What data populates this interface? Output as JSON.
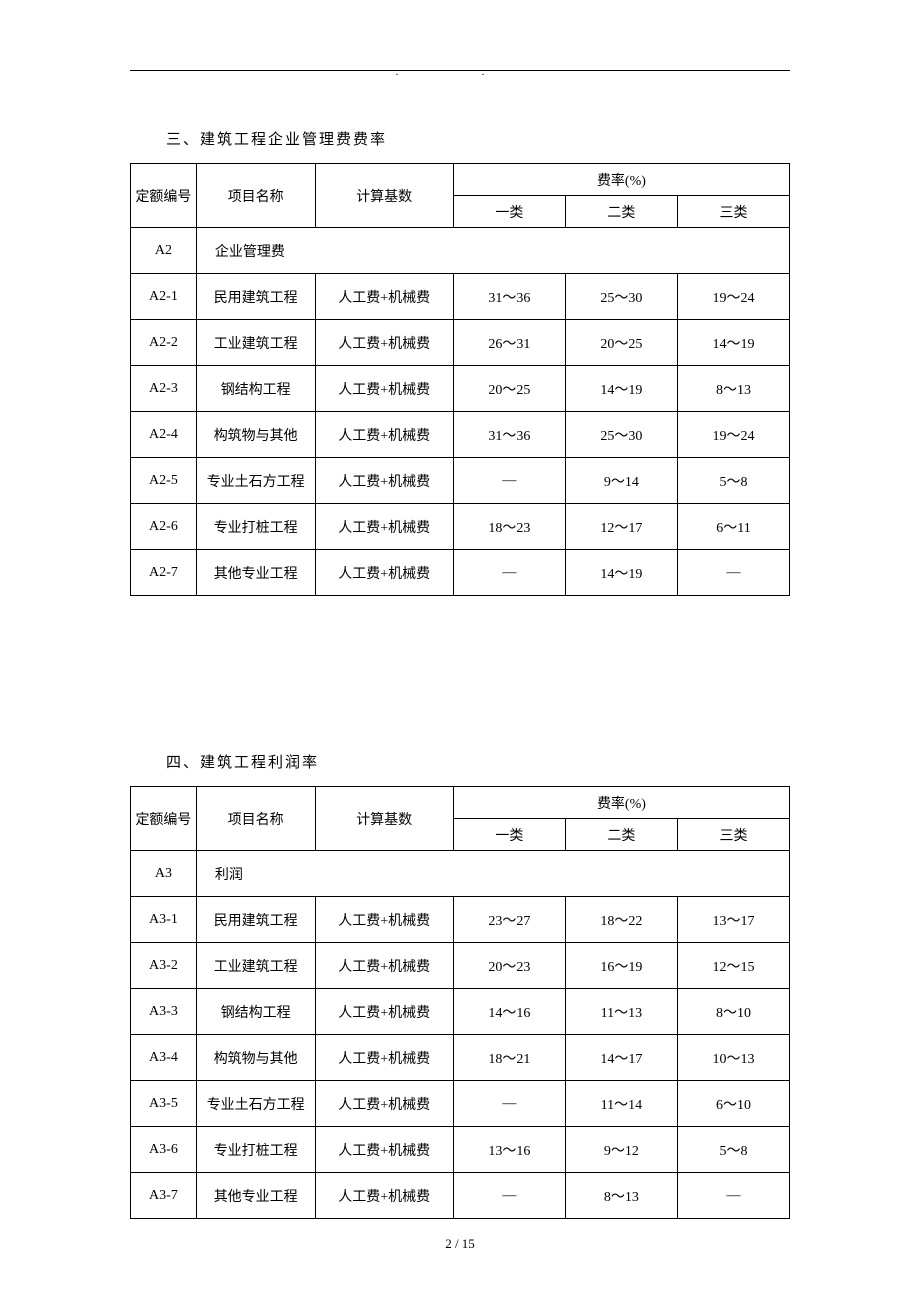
{
  "page": {
    "dots": ".   .",
    "pageNumber": "2 / 15"
  },
  "table1": {
    "title": "三、建筑工程企业管理费费率",
    "headers": {
      "code": "定额编号",
      "name": "项目名称",
      "base": "计算基数",
      "rateGroup": "费率(%)",
      "rate1": "一类",
      "rate2": "二类",
      "rate3": "三类"
    },
    "sectionCode": "A2",
    "sectionName": "企业管理费",
    "rows": [
      {
        "code": "A2-1",
        "name": "民用建筑工程",
        "base": "人工费+机械费",
        "r1": "31～36",
        "r2": "25～30",
        "r3": "19～24"
      },
      {
        "code": "A2-2",
        "name": "工业建筑工程",
        "base": "人工费+机械费",
        "r1": "26～31",
        "r2": "20～25",
        "r3": "14～19"
      },
      {
        "code": "A2-3",
        "name": "钢结构工程",
        "base": "人工费+机械费",
        "r1": "20～25",
        "r2": "14～19",
        "r3": "8～13"
      },
      {
        "code": "A2-4",
        "name": "构筑物与其他",
        "base": "人工费+机械费",
        "r1": "31～36",
        "r2": "25～30",
        "r3": "19～24"
      },
      {
        "code": "A2-5",
        "name": "专业土石方工程",
        "base": "人工费+机械费",
        "r1": "—",
        "r2": "9～14",
        "r3": "5～8"
      },
      {
        "code": "A2-6",
        "name": "专业打桩工程",
        "base": "人工费+机械费",
        "r1": "18～23",
        "r2": "12～17",
        "r3": "6～11"
      },
      {
        "code": "A2-7",
        "name": "其他专业工程",
        "base": "人工费+机械费",
        "r1": "—",
        "r2": "14～19",
        "r3": "—"
      }
    ]
  },
  "table2": {
    "title": "四、建筑工程利润率",
    "headers": {
      "code": "定额编号",
      "name": "项目名称",
      "base": "计算基数",
      "rateGroup": "费率(%)",
      "rate1": "一类",
      "rate2": "二类",
      "rate3": "三类"
    },
    "sectionCode": "A3",
    "sectionName": "利润",
    "rows": [
      {
        "code": "A3-1",
        "name": "民用建筑工程",
        "base": "人工费+机械费",
        "r1": "23～27",
        "r2": "18～22",
        "r3": "13～17"
      },
      {
        "code": "A3-2",
        "name": "工业建筑工程",
        "base": "人工费+机械费",
        "r1": "20～23",
        "r2": "16～19",
        "r3": "12～15"
      },
      {
        "code": "A3-3",
        "name": "钢结构工程",
        "base": "人工费+机械费",
        "r1": "14～16",
        "r2": "11～13",
        "r3": "8～10"
      },
      {
        "code": "A3-4",
        "name": "构筑物与其他",
        "base": "人工费+机械费",
        "r1": "18～21",
        "r2": "14～17",
        "r3": "10～13"
      },
      {
        "code": "A3-5",
        "name": "专业土石方工程",
        "base": "人工费+机械费",
        "r1": "—",
        "r2": "11～14",
        "r3": "6～10"
      },
      {
        "code": "A3-6",
        "name": "专业打桩工程",
        "base": "人工费+机械费",
        "r1": "13～16",
        "r2": "9～12",
        "r3": "5～8"
      },
      {
        "code": "A3-7",
        "name": "其他专业工程",
        "base": "人工费+机械费",
        "r1": "—",
        "r2": "8～13",
        "r3": "—"
      }
    ]
  }
}
